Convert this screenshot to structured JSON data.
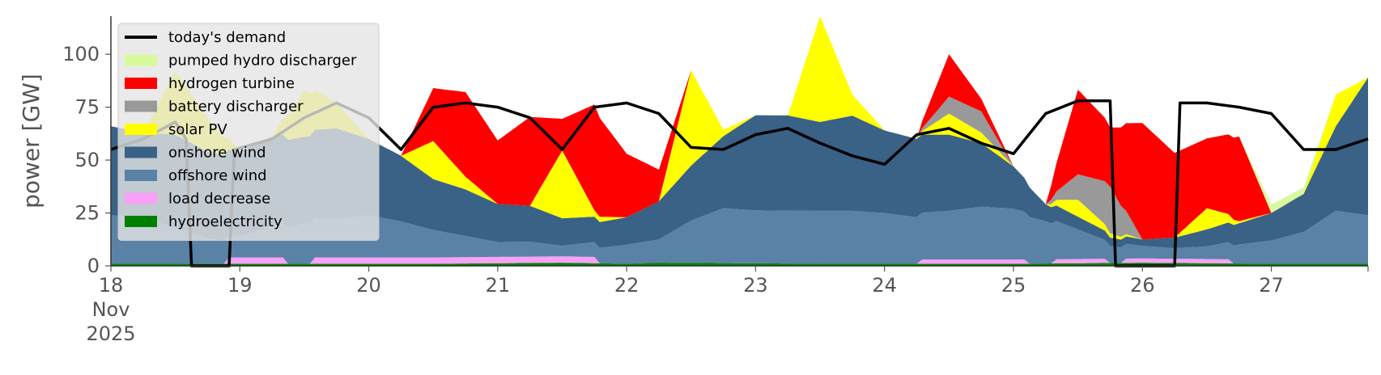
{
  "chart_data": {
    "type": "area",
    "stacked": true,
    "ylabel": "power [GW]",
    "xlabel": "",
    "ylim": [
      0,
      118
    ],
    "yticks": [
      0,
      25,
      50,
      75,
      100
    ],
    "ytick_labels": [
      "0",
      "25",
      "50",
      "75",
      "100"
    ],
    "xlim": [
      0,
      234
    ],
    "x_unit": "hours from 2025-11-18 00:00",
    "xticks": [
      0,
      24,
      48,
      72,
      96,
      120,
      144,
      168,
      192,
      216
    ],
    "xtick_labels": [
      "18\nNov\n2025",
      "19",
      "20",
      "21",
      "22",
      "23",
      "24",
      "25",
      "26",
      "27"
    ],
    "legend_position": "top-left",
    "grid": false,
    "series": [
      {
        "name": "hydroelectricity",
        "color": "#008000",
        "points": [
          [
            0,
            1
          ],
          [
            36,
            1
          ],
          [
            60,
            1
          ],
          [
            84,
            1.5
          ],
          [
            96,
            1
          ],
          [
            102,
            1.5
          ],
          [
            132,
            1
          ],
          [
            168,
            1
          ],
          [
            192,
            1.5
          ],
          [
            216,
            1
          ],
          [
            234,
            1
          ]
        ]
      },
      {
        "name": "load decrease",
        "color": "#f7a1f7",
        "points": [
          [
            0,
            0
          ],
          [
            21,
            0
          ],
          [
            22,
            3
          ],
          [
            32,
            3
          ],
          [
            33,
            0
          ],
          [
            37,
            0
          ],
          [
            38,
            3
          ],
          [
            90,
            3
          ],
          [
            91,
            0
          ],
          [
            150,
            0
          ],
          [
            151,
            2
          ],
          [
            170,
            2
          ],
          [
            171,
            0
          ],
          [
            175,
            0
          ],
          [
            176,
            2
          ],
          [
            185,
            2
          ],
          [
            186,
            0
          ],
          [
            188,
            0
          ],
          [
            189,
            2
          ],
          [
            208,
            2
          ],
          [
            209,
            0
          ],
          [
            234,
            0
          ]
        ]
      },
      {
        "name": "offshore wind",
        "color": "#5a82a6",
        "points": [
          [
            0,
            23
          ],
          [
            6,
            22
          ],
          [
            12,
            17
          ],
          [
            18,
            12
          ],
          [
            24,
            10
          ],
          [
            30,
            15
          ],
          [
            36,
            19
          ],
          [
            42,
            18
          ],
          [
            48,
            20
          ],
          [
            54,
            17
          ],
          [
            60,
            13
          ],
          [
            66,
            10
          ],
          [
            72,
            7
          ],
          [
            78,
            7
          ],
          [
            84,
            5
          ],
          [
            90,
            7
          ],
          [
            96,
            9
          ],
          [
            102,
            11
          ],
          [
            108,
            20
          ],
          [
            114,
            26
          ],
          [
            120,
            25
          ],
          [
            126,
            25
          ],
          [
            132,
            25
          ],
          [
            138,
            25
          ],
          [
            144,
            24
          ],
          [
            150,
            22
          ],
          [
            156,
            23
          ],
          [
            162,
            25
          ],
          [
            168,
            24
          ],
          [
            174,
            20
          ],
          [
            180,
            14
          ],
          [
            186,
            8
          ],
          [
            192,
            6
          ],
          [
            198,
            5
          ],
          [
            204,
            6
          ],
          [
            210,
            9
          ],
          [
            216,
            11
          ],
          [
            222,
            15
          ],
          [
            228,
            25
          ],
          [
            234,
            23
          ]
        ]
      },
      {
        "name": "onshore wind",
        "color": "#3a6186",
        "points": [
          [
            0,
            42
          ],
          [
            6,
            40
          ],
          [
            12,
            44
          ],
          [
            18,
            41
          ],
          [
            24,
            40
          ],
          [
            30,
            42
          ],
          [
            36,
            41
          ],
          [
            42,
            43
          ],
          [
            48,
            36
          ],
          [
            54,
            31
          ],
          [
            60,
            24
          ],
          [
            66,
            22
          ],
          [
            72,
            18
          ],
          [
            78,
            17
          ],
          [
            84,
            13
          ],
          [
            90,
            12
          ],
          [
            96,
            13
          ],
          [
            102,
            18
          ],
          [
            108,
            26
          ],
          [
            114,
            34
          ],
          [
            120,
            45
          ],
          [
            126,
            45
          ],
          [
            132,
            42
          ],
          [
            138,
            45
          ],
          [
            144,
            39
          ],
          [
            150,
            37
          ],
          [
            156,
            36
          ],
          [
            162,
            30
          ],
          [
            168,
            20
          ],
          [
            174,
            8
          ],
          [
            180,
            6
          ],
          [
            186,
            4
          ],
          [
            192,
            3
          ],
          [
            198,
            5
          ],
          [
            204,
            8
          ],
          [
            210,
            10
          ],
          [
            216,
            13
          ],
          [
            222,
            18
          ],
          [
            228,
            40
          ],
          [
            234,
            65
          ]
        ]
      },
      {
        "name": "solar PV",
        "color": "#ffff00",
        "points": [
          [
            0,
            0
          ],
          [
            6,
            0
          ],
          [
            12,
            30
          ],
          [
            18,
            16
          ],
          [
            24,
            0
          ],
          [
            30,
            0
          ],
          [
            36,
            22
          ],
          [
            42,
            12
          ],
          [
            48,
            0
          ],
          [
            54,
            0
          ],
          [
            60,
            18
          ],
          [
            66,
            6
          ],
          [
            72,
            0
          ],
          [
            78,
            0
          ],
          [
            84,
            32
          ],
          [
            90,
            3
          ],
          [
            96,
            0
          ],
          [
            102,
            0
          ],
          [
            108,
            45
          ],
          [
            114,
            3
          ],
          [
            120,
            0
          ],
          [
            126,
            0
          ],
          [
            132,
            50
          ],
          [
            138,
            10
          ],
          [
            144,
            0
          ],
          [
            150,
            0
          ],
          [
            156,
            10
          ],
          [
            162,
            5
          ],
          [
            168,
            0
          ],
          [
            174,
            0
          ],
          [
            180,
            8
          ],
          [
            186,
            2
          ],
          [
            192,
            0
          ],
          [
            198,
            0
          ],
          [
            204,
            10
          ],
          [
            210,
            1
          ],
          [
            216,
            0
          ],
          [
            222,
            0
          ],
          [
            228,
            15
          ],
          [
            234,
            0
          ]
        ]
      },
      {
        "name": "battery discharger",
        "color": "#999999",
        "points": [
          [
            0,
            0
          ],
          [
            150,
            0
          ],
          [
            156,
            8
          ],
          [
            162,
            10
          ],
          [
            168,
            0
          ],
          [
            174,
            0
          ],
          [
            180,
            12
          ],
          [
            186,
            22
          ],
          [
            192,
            0
          ],
          [
            234,
            0
          ]
        ]
      },
      {
        "name": "hydrogen turbine",
        "color": "#ff0000",
        "points": [
          [
            0,
            0
          ],
          [
            54,
            0
          ],
          [
            60,
            25
          ],
          [
            66,
            40
          ],
          [
            72,
            30
          ],
          [
            78,
            42
          ],
          [
            84,
            15
          ],
          [
            90,
            50
          ],
          [
            96,
            30
          ],
          [
            102,
            15
          ],
          [
            108,
            0
          ],
          [
            120,
            0
          ],
          [
            150,
            0
          ],
          [
            156,
            20
          ],
          [
            162,
            6
          ],
          [
            168,
            0
          ],
          [
            174,
            0
          ],
          [
            180,
            40
          ],
          [
            186,
            28
          ],
          [
            192,
            55
          ],
          [
            198,
            40
          ],
          [
            204,
            33
          ],
          [
            210,
            40
          ],
          [
            216,
            0
          ],
          [
            234,
            0
          ]
        ]
      },
      {
        "name": "pumped hydro discharger",
        "color": "#d9f99d",
        "points": [
          [
            0,
            0
          ],
          [
            210,
            0
          ],
          [
            216,
            4
          ],
          [
            222,
            3
          ],
          [
            228,
            0
          ],
          [
            234,
            0
          ]
        ]
      }
    ],
    "demand": {
      "name": "today's demand",
      "color": "#000000",
      "points": [
        [
          0,
          55
        ],
        [
          6,
          60
        ],
        [
          12,
          68
        ],
        [
          14,
          60
        ],
        [
          15,
          0
        ],
        [
          22,
          0
        ],
        [
          23,
          55
        ],
        [
          30,
          60
        ],
        [
          36,
          70
        ],
        [
          42,
          77
        ],
        [
          48,
          70
        ],
        [
          54,
          55
        ],
        [
          60,
          75
        ],
        [
          66,
          77
        ],
        [
          72,
          75
        ],
        [
          78,
          70
        ],
        [
          84,
          55
        ],
        [
          90,
          75
        ],
        [
          96,
          77
        ],
        [
          102,
          72
        ],
        [
          108,
          56
        ],
        [
          114,
          55
        ],
        [
          120,
          62
        ],
        [
          126,
          65
        ],
        [
          132,
          58
        ],
        [
          138,
          52
        ],
        [
          144,
          48
        ],
        [
          150,
          62
        ],
        [
          156,
          65
        ],
        [
          162,
          58
        ],
        [
          168,
          53
        ],
        [
          174,
          72
        ],
        [
          180,
          78
        ],
        [
          186,
          78
        ],
        [
          187,
          0
        ],
        [
          198,
          0
        ],
        [
          199,
          77
        ],
        [
          204,
          77
        ],
        [
          210,
          75
        ],
        [
          216,
          72
        ],
        [
          222,
          55
        ],
        [
          228,
          55
        ],
        [
          234,
          60
        ]
      ]
    }
  }
}
